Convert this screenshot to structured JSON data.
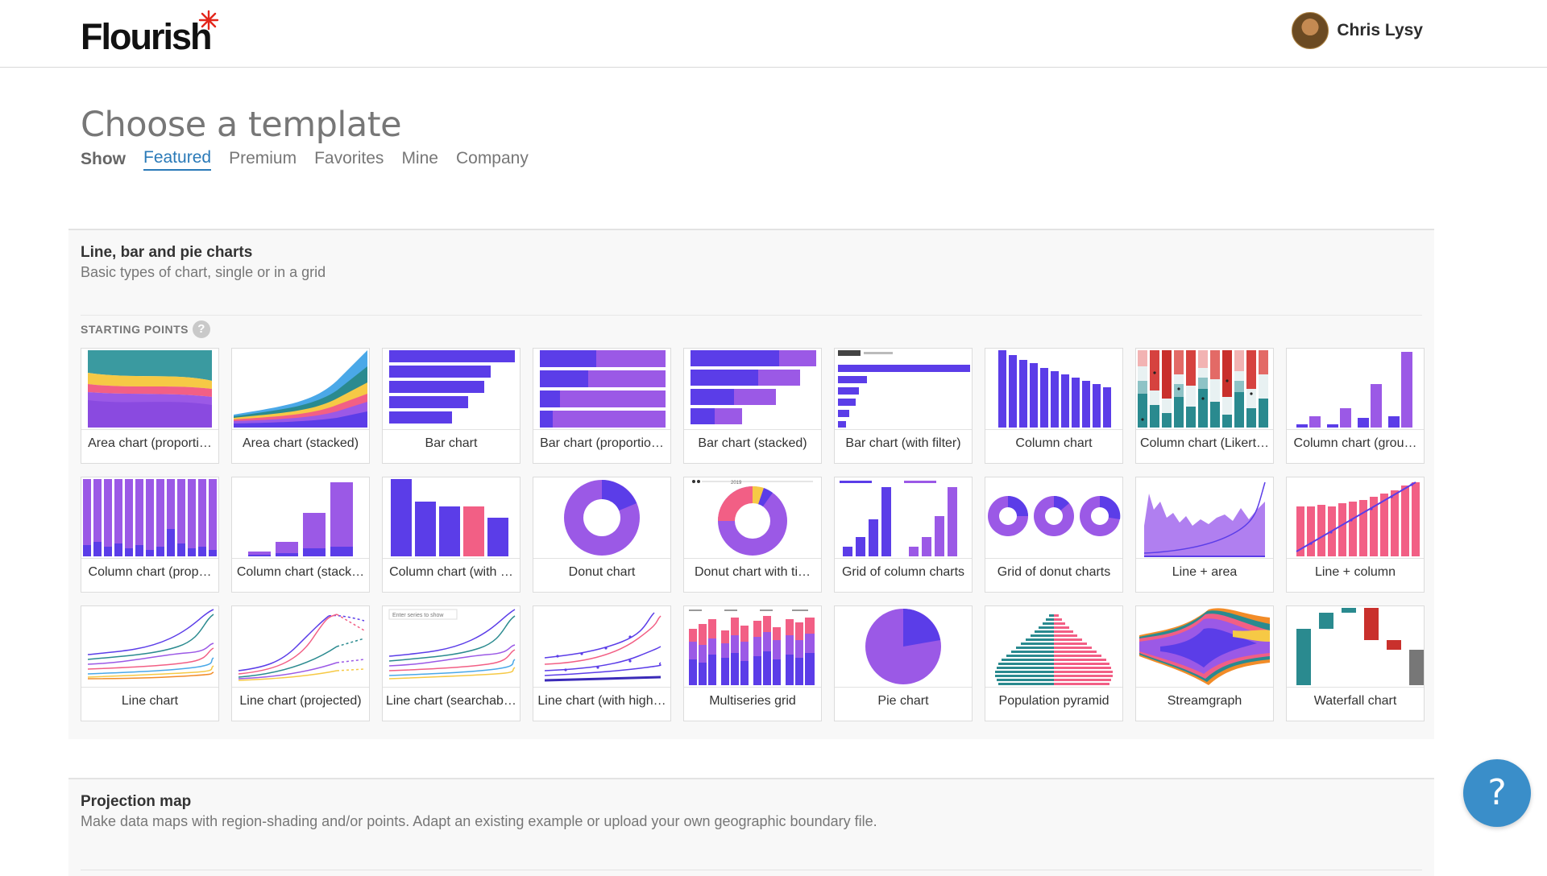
{
  "header": {
    "logo_text": "Flourish",
    "user_name": "Chris Lysy"
  },
  "page": {
    "title": "Choose a template"
  },
  "filters": {
    "show_label": "Show",
    "tabs": [
      "Featured",
      "Premium",
      "Favorites",
      "Mine",
      "Company"
    ],
    "active": "Featured"
  },
  "sections": [
    {
      "title": "Line, bar and pie charts",
      "description": "Basic types of chart, single or in a grid",
      "starting_points_label": "STARTING POINTS"
    },
    {
      "title": "Projection map",
      "description": "Make data maps with region-shading and/or points. Adapt an existing example or upload your own geographic boundary file."
    }
  ],
  "templates": [
    "Area chart (proporti…",
    "Area chart (stacked)",
    "Bar chart",
    "Bar chart (proportio…",
    "Bar chart (stacked)",
    "Bar chart (with filter)",
    "Column chart",
    "Column chart (Likert…",
    "Column chart (grou…",
    "Column chart (prop…",
    "Column chart (stack…",
    "Column chart (with …",
    "Donut chart",
    "Donut chart with ti…",
    "Grid of column charts",
    "Grid of donut charts",
    "Line + area",
    "Line + column",
    "Line chart",
    "Line chart (projected)",
    "Line chart (searchable)",
    "Line chart (with high…",
    "Multiseries grid",
    "Pie chart",
    "Population pyramid",
    "Streamgraph",
    "Waterfall chart"
  ],
  "thumb_text": {
    "searchable_hint": "Enter series to show",
    "donut_year": "2019"
  },
  "colors": {
    "purple_dark": "#5b3de8",
    "purple_light": "#9b59e6",
    "pink": "#f25f85",
    "teal": "#2a8a8f",
    "link_blue": "#2a7ab8",
    "help_blue": "#3a8ec9"
  },
  "help_button": {
    "label": "?"
  }
}
